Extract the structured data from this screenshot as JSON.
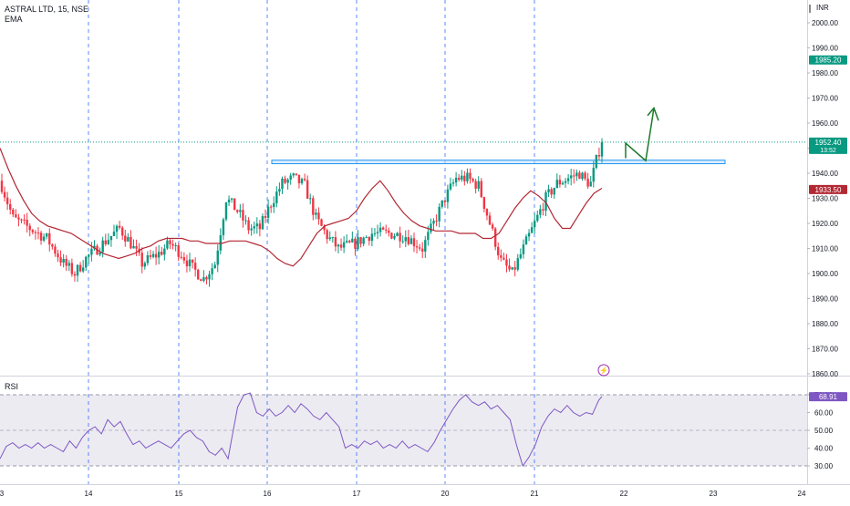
{
  "header": {
    "symbol_line": "ASTRAL LTD, 15, NSE",
    "indicator_label": "EMA"
  },
  "currency": "INR",
  "price_axis": {
    "ticks": [
      "2000.00",
      "1990.00",
      "1980.00",
      "1970.00",
      "1960.00",
      "1950.00",
      "1940.00",
      "1930.00",
      "1920.00",
      "1910.00",
      "1900.00",
      "1890.00",
      "1880.00",
      "1870.00",
      "1860.00"
    ],
    "tick_values": [
      2000,
      1990,
      1980,
      1970,
      1960,
      1950,
      1940,
      1930,
      1920,
      1910,
      1900,
      1890,
      1880,
      1870,
      1860
    ],
    "labels": [
      {
        "text": "1985.20",
        "value": 1985.2,
        "color": "#089981"
      },
      {
        "text": "1952.40",
        "sub": "13:52",
        "value": 1952.4,
        "color": "#089981"
      },
      {
        "text": "1933.50",
        "value": 1933.5,
        "color": "#b22833"
      }
    ]
  },
  "rsi_panel": {
    "label": "RSI",
    "ticks": [
      "70.00",
      "60.00",
      "50.00",
      "40.00",
      "30.00"
    ],
    "tick_values": [
      70,
      60,
      50,
      40,
      30
    ],
    "value_label": {
      "text": "68.91",
      "value": 68.91,
      "color": "#7e57c2"
    }
  },
  "time_axis": {
    "ticks": [
      "3",
      "14",
      "15",
      "16",
      "17",
      "20",
      "21",
      "22",
      "23",
      "24"
    ]
  },
  "colors": {
    "up": "#089981",
    "down": "#f23645",
    "ema": "#b22833",
    "rsi": "#7e57c2",
    "session_line": "#2962ff",
    "zone_fill": "#bbdefb",
    "zone_border": "#2196f3",
    "arrow": "#1b7a2a"
  },
  "chart_data": {
    "type": "candlestick",
    "symbol": "ASTRAL LTD",
    "interval": "15",
    "exchange": "NSE",
    "ylim": [
      1858,
      2004
    ],
    "ema_series": [
      1950,
      1942,
      1935,
      1929,
      1924,
      1921,
      1919,
      1918,
      1917,
      1916,
      1914,
      1912,
      1910,
      1908,
      1907,
      1906,
      1907,
      1908,
      1910,
      1911,
      1913,
      1914,
      1914,
      1914,
      1913,
      1913,
      1912,
      1912,
      1912,
      1913,
      1913,
      1913,
      1912,
      1911,
      1909,
      1906,
      1904,
      1903,
      1906,
      1911,
      1916,
      1919,
      1920,
      1921,
      1922,
      1925,
      1930,
      1934,
      1937,
      1933,
      1928,
      1924,
      1921,
      1919,
      1918,
      1917,
      1917,
      1917,
      1916,
      1916,
      1916,
      1914,
      1914,
      1916,
      1921,
      1926,
      1930,
      1933,
      1931,
      1928,
      1922,
      1918,
      1918,
      1923,
      1928,
      1932,
      1934
    ],
    "candles_summary": {
      "first_close": 1935,
      "low": 1895,
      "high": 1953,
      "last_close": 1952.4
    },
    "resistance_zone": {
      "low": 1943.8,
      "high": 1945.2
    },
    "rsi_last": 68.91
  }
}
